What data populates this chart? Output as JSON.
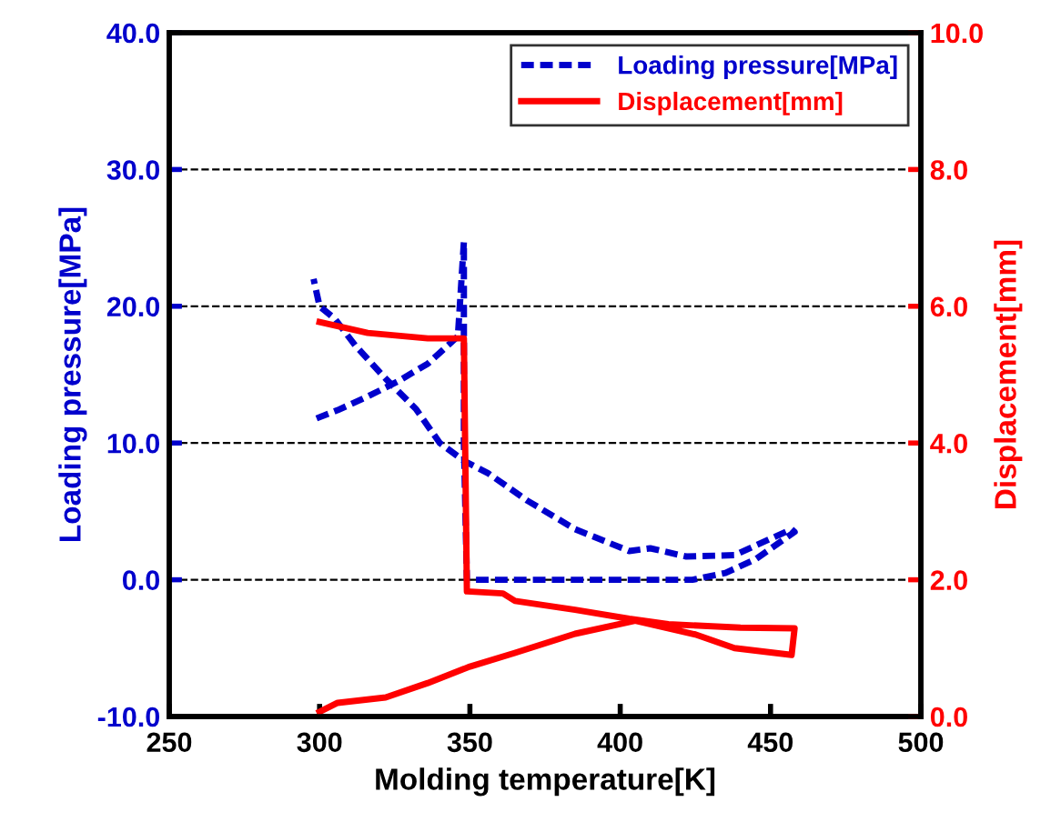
{
  "chart_data": {
    "type": "line",
    "xlabel": "Molding temperature[K]",
    "ylabel": "Loading pressure[MPa]",
    "y2label": "Displacement[mm]",
    "xlim": [
      250,
      500
    ],
    "xticks": [
      250,
      300,
      350,
      400,
      450,
      500
    ],
    "ylim": [
      -10,
      40
    ],
    "yticks": [
      {
        "value": -10,
        "label": "-10.0"
      },
      {
        "value": 0,
        "label": "0.0"
      },
      {
        "value": 10,
        "label": "10.0"
      },
      {
        "value": 20,
        "label": "20.0"
      },
      {
        "value": 30,
        "label": "30.0"
      },
      {
        "value": 40,
        "label": "40.0"
      }
    ],
    "y2lim": [
      0,
      10
    ],
    "y2ticks": [
      {
        "value": 0,
        "label": "0.0"
      },
      {
        "value": 2,
        "label": "2.0"
      },
      {
        "value": 4,
        "label": "4.0"
      },
      {
        "value": 6,
        "label": "6.0"
      },
      {
        "value": 8,
        "label": "8.0"
      },
      {
        "value": 10,
        "label": "10.0"
      }
    ],
    "grid": "y",
    "legend": "top right",
    "series": [
      {
        "name": "Loading pressure[MPa]",
        "color": "#0000cc",
        "line_style": "dashed",
        "x": [
          299,
          306,
          316,
          326,
          336,
          346,
          348,
          348,
          349,
          380,
          424,
          435,
          445,
          458,
          457,
          438,
          422,
          410,
          403,
          385,
          369,
          356,
          348,
          340,
          332,
          322,
          312,
          305,
          300,
          298
        ],
        "values": [
          11.8,
          12.4,
          13.4,
          14.5,
          15.8,
          17.8,
          24.7,
          10,
          0,
          0,
          0,
          0.5,
          1.5,
          3.5,
          3.7,
          1.8,
          1.7,
          2.3,
          2.1,
          3.7,
          5.8,
          7.8,
          8.7,
          10,
          12.5,
          14.7,
          17.1,
          19.1,
          20,
          22
        ]
      },
      {
        "name": "Displacement[mm]",
        "color": "#ff0000",
        "line_style": "solid",
        "axis": "y2",
        "x": [
          300,
          316,
          336,
          348,
          349,
          361,
          365,
          385,
          403,
          416,
          440,
          458,
          457,
          438,
          425,
          405,
          385,
          365,
          350,
          336,
          322,
          306,
          300
        ],
        "values": [
          5.77,
          5.61,
          5.53,
          5.53,
          1.83,
          1.8,
          1.69,
          1.56,
          1.43,
          1.35,
          1.3,
          1.29,
          0.9,
          1.0,
          1.2,
          1.4,
          1.21,
          0.93,
          0.73,
          0.49,
          0.28,
          0.2,
          0.07
        ]
      }
    ]
  }
}
